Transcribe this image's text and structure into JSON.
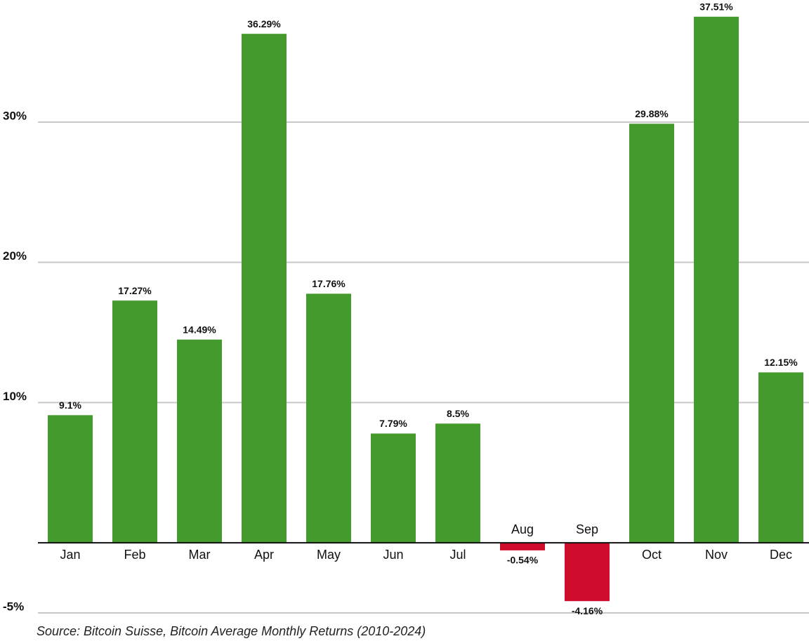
{
  "chart_data": {
    "type": "bar",
    "source": "Source: Bitcoin Suisse, Bitcoin Average Monthly Returns (2010-2024)",
    "categories": [
      "Jan",
      "Feb",
      "Mar",
      "Apr",
      "May",
      "Jun",
      "Jul",
      "Aug",
      "Sep",
      "Oct",
      "Nov",
      "Dec"
    ],
    "values": [
      9.1,
      17.27,
      14.49,
      36.29,
      17.76,
      7.79,
      8.5,
      -0.54,
      -4.16,
      29.88,
      37.51,
      12.15
    ],
    "value_labels": [
      "9.1%",
      "17.27%",
      "14.49%",
      "36.29%",
      "17.76%",
      "7.79%",
      "8.5%",
      "-0.54%",
      "-4.16%",
      "29.88%",
      "37.51%",
      "12.15%"
    ],
    "positive_color": "#459a2d",
    "negative_color": "#d00c2c",
    "ylim": [
      -5,
      38
    ],
    "yticks": [
      {
        "value": -5,
        "label": "-5%"
      },
      {
        "value": 10,
        "label": "10%"
      },
      {
        "value": 20,
        "label": "20%"
      },
      {
        "value": 30,
        "label": "30%"
      }
    ],
    "grid": true
  }
}
